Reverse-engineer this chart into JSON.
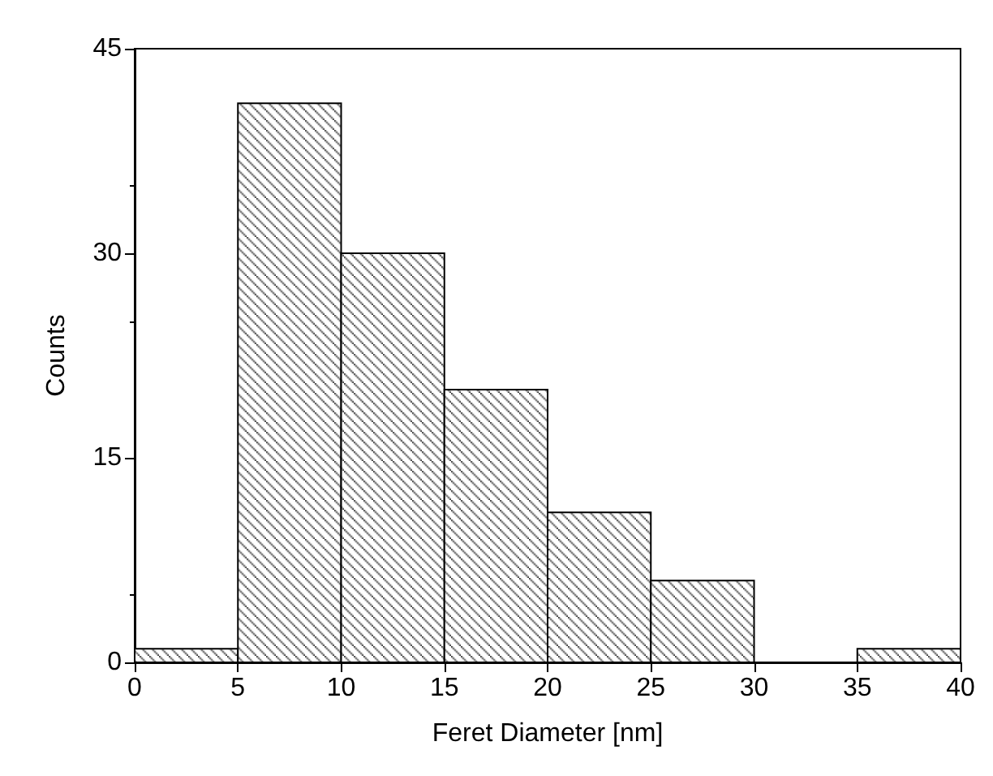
{
  "chart_data": {
    "type": "histogram",
    "xlabel": "Feret Diameter [nm]",
    "ylabel": "Counts",
    "bins": [
      0,
      5,
      10,
      15,
      20,
      25,
      30,
      35,
      40
    ],
    "values": [
      1,
      41,
      30,
      20,
      11,
      6,
      0,
      1
    ],
    "color": "#000000",
    "xlim": [
      0,
      40
    ],
    "xticks": [
      0,
      5,
      10,
      15,
      20,
      25,
      30,
      35,
      40
    ],
    "ylim": [
      0,
      45
    ],
    "yticks": [
      0,
      15,
      30,
      45
    ],
    "grid": false
  }
}
